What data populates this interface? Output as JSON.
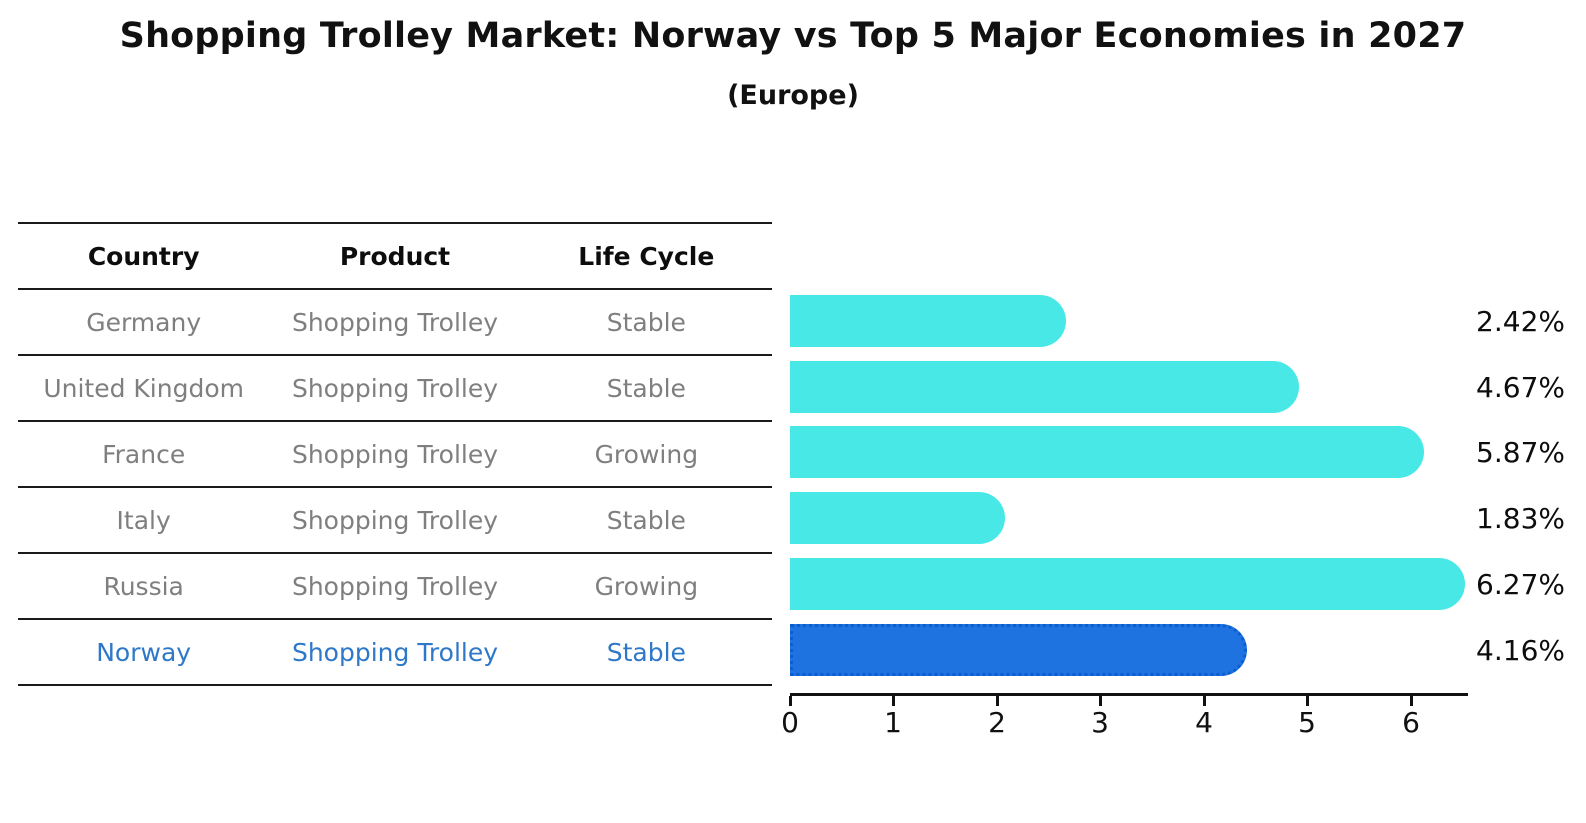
{
  "title": "Shopping Trolley Market: Norway vs Top 5 Major Economies in 2027",
  "subtitle": "(Europe)",
  "table": {
    "headers": [
      "Country",
      "Product",
      "Life Cycle"
    ],
    "rows": [
      {
        "country": "Germany",
        "product": "Shopping Trolley",
        "life_cycle": "Stable",
        "highlight": false
      },
      {
        "country": "United Kingdom",
        "product": "Shopping Trolley",
        "life_cycle": "Stable",
        "highlight": false
      },
      {
        "country": "France",
        "product": "Shopping Trolley",
        "life_cycle": "Growing",
        "highlight": false
      },
      {
        "country": "Italy",
        "product": "Shopping Trolley",
        "life_cycle": "Stable",
        "highlight": false
      },
      {
        "country": "Russia",
        "product": "Shopping Trolley",
        "life_cycle": "Growing",
        "highlight": false
      },
      {
        "country": "Norway",
        "product": "Shopping Trolley",
        "life_cycle": "Stable",
        "highlight": true
      }
    ]
  },
  "chart_data": {
    "type": "bar",
    "orientation": "horizontal",
    "title": "Shopping Trolley Market: Norway vs Top 5 Major Economies in 2027",
    "subtitle": "(Europe)",
    "categories": [
      "Germany",
      "United Kingdom",
      "France",
      "Italy",
      "Russia",
      "Norway"
    ],
    "values": [
      2.42,
      4.67,
      5.87,
      1.83,
      6.27,
      4.16
    ],
    "value_labels": [
      "2.42%",
      "4.67%",
      "5.87%",
      "1.83%",
      "6.27%",
      "4.16%"
    ],
    "xlabel": "",
    "ylabel": "",
    "xlim": [
      0,
      6.55
    ],
    "x_tick_labels": [
      "0",
      "1",
      "2",
      "3",
      "4",
      "5",
      "6"
    ],
    "grid": false,
    "legend": false,
    "bar_color": "#47e8e5",
    "highlight_color": "#1e73e0",
    "highlight_index": 5,
    "highlight_series": "Norway",
    "text_color_rows": "#7f7f7f",
    "text_color_highlight": "#2e78c9"
  }
}
